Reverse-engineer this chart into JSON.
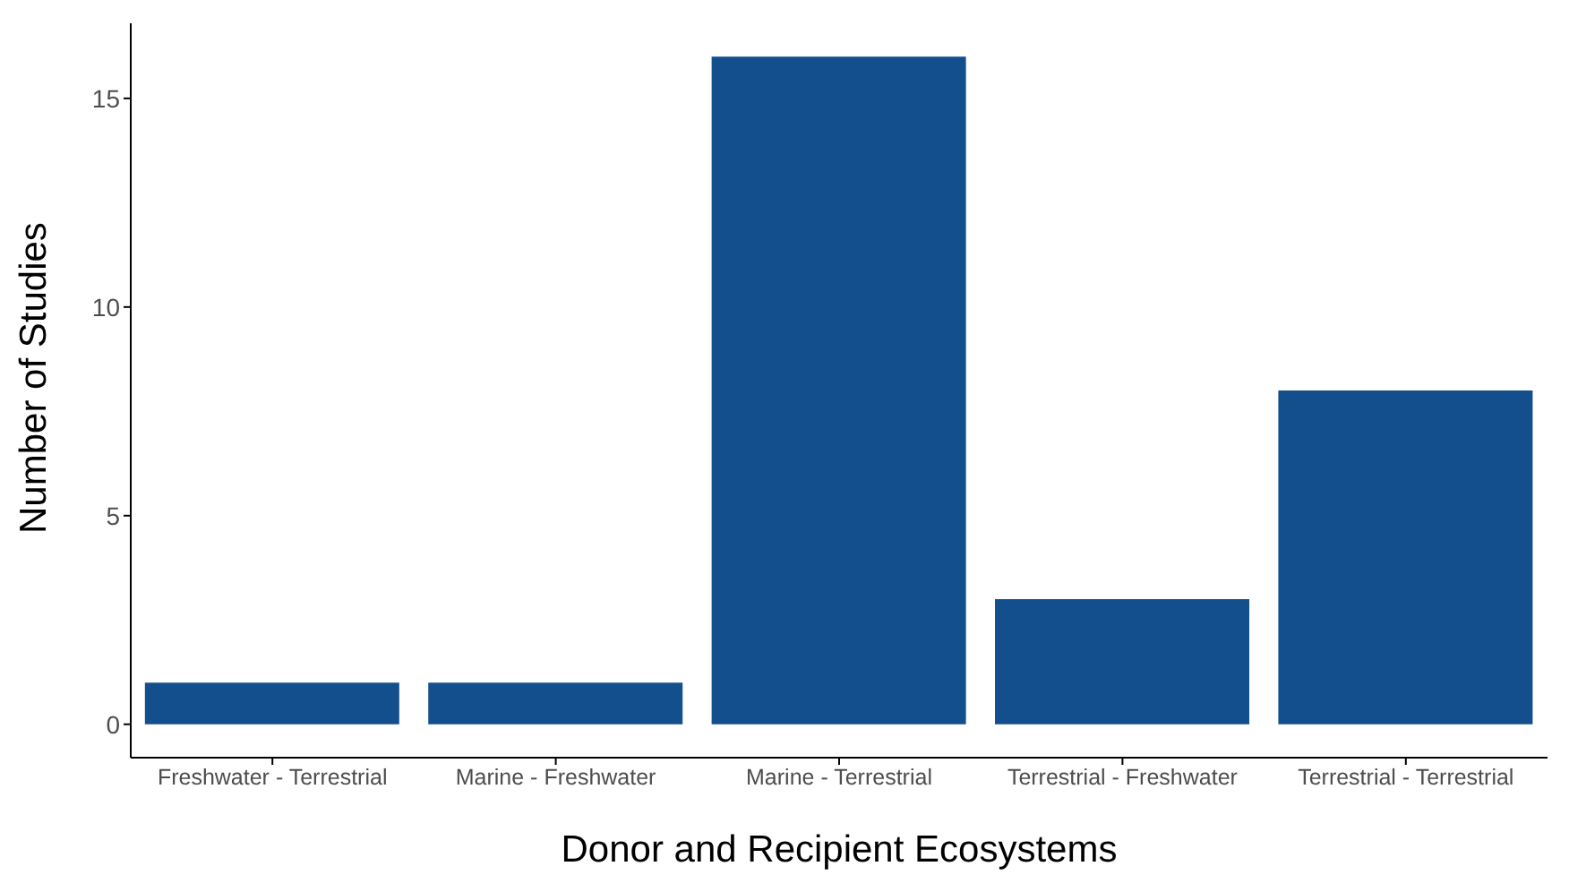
{
  "chart_data": {
    "type": "bar",
    "xlabel": "Donor and Recipient Ecosystems",
    "ylabel": "Number of Studies",
    "categories": [
      "Freshwater - Terrestrial",
      "Marine - Freshwater",
      "Marine - Terrestrial",
      "Terrestrial - Freshwater",
      "Terrestrial - Terrestrial"
    ],
    "values": [
      1,
      1,
      16,
      3,
      8
    ],
    "color": "#134f8c",
    "ylim": [
      -0.8,
      16.8
    ],
    "yticks": [
      0,
      5,
      10,
      15
    ],
    "grid": false
  }
}
